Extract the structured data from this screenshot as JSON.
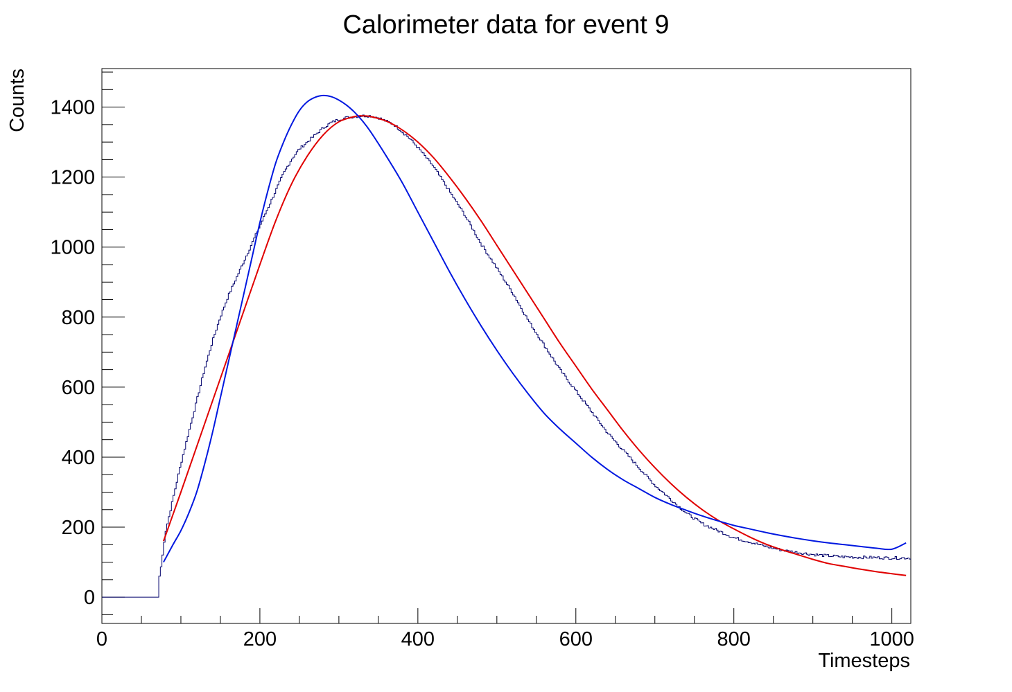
{
  "chart_data": {
    "type": "line",
    "title": "Calorimeter data for event 9",
    "xlabel": "Timesteps",
    "ylabel": "Counts",
    "xlim": [
      0,
      1024
    ],
    "ylim": [
      -75,
      1510
    ],
    "grid": false,
    "x_ticks": [
      0,
      200,
      400,
      600,
      800,
      1000
    ],
    "y_ticks": [
      0,
      200,
      400,
      600,
      800,
      1000,
      1200,
      1400
    ],
    "colors": {
      "data": "#00006b",
      "fit_red": "#e00000",
      "fit_blue": "#0018e0"
    },
    "series": [
      {
        "key": "data",
        "style": "step",
        "color": "#00006b",
        "x": [
          0,
          40,
          72,
          73,
          76,
          80,
          90,
          100,
          110,
          120,
          130,
          140,
          150,
          160,
          170,
          180,
          190,
          200,
          210,
          220,
          230,
          240,
          250,
          260,
          270,
          280,
          290,
          300,
          310,
          320,
          330,
          340,
          350,
          360,
          370,
          380,
          390,
          400,
          420,
          440,
          460,
          480,
          500,
          520,
          540,
          560,
          580,
          600,
          620,
          640,
          660,
          680,
          700,
          720,
          740,
          760,
          780,
          800,
          820,
          840,
          860,
          880,
          900,
          920,
          940,
          960,
          980,
          1000,
          1024
        ],
        "values": [
          0,
          0,
          0,
          60,
          100,
          180,
          280,
          380,
          470,
          560,
          650,
          730,
          800,
          860,
          910,
          960,
          1010,
          1060,
          1110,
          1160,
          1210,
          1250,
          1280,
          1300,
          1320,
          1340,
          1355,
          1365,
          1370,
          1373,
          1375,
          1375,
          1370,
          1360,
          1350,
          1330,
          1310,
          1285,
          1230,
          1160,
          1090,
          1010,
          940,
          870,
          790,
          720,
          650,
          590,
          530,
          470,
          420,
          370,
          320,
          280,
          240,
          210,
          190,
          170,
          158,
          145,
          135,
          128,
          122,
          118,
          115,
          114,
          113,
          112,
          112
        ]
      },
      {
        "key": "fit_red",
        "style": "smooth",
        "color": "#e00000",
        "x": [
          78,
          100,
          120,
          140,
          160,
          180,
          200,
          220,
          240,
          260,
          280,
          300,
          320,
          330,
          340,
          360,
          380,
          400,
          420,
          440,
          460,
          480,
          500,
          520,
          540,
          560,
          580,
          600,
          620,
          640,
          660,
          680,
          700,
          720,
          740,
          760,
          780,
          800,
          820,
          840,
          860,
          880,
          900,
          920,
          940,
          960,
          980,
          1000,
          1018
        ],
        "values": [
          160,
          300,
          430,
          560,
          690,
          820,
          950,
          1075,
          1180,
          1260,
          1320,
          1358,
          1373,
          1375,
          1373,
          1360,
          1335,
          1300,
          1255,
          1200,
          1140,
          1075,
          1005,
          935,
          865,
          795,
          725,
          660,
          595,
          535,
          475,
          420,
          370,
          325,
          285,
          250,
          220,
          195,
          172,
          152,
          136,
          122,
          108,
          96,
          88,
          80,
          73,
          67,
          62
        ]
      },
      {
        "key": "fit_blue",
        "style": "smooth",
        "color": "#0018e0",
        "x": [
          78,
          90,
          100,
          110,
          120,
          130,
          140,
          150,
          160,
          170,
          180,
          190,
          200,
          210,
          220,
          230,
          240,
          250,
          260,
          270,
          280,
          290,
          300,
          310,
          320,
          330,
          340,
          360,
          380,
          400,
          420,
          440,
          460,
          480,
          500,
          520,
          540,
          560,
          580,
          600,
          620,
          640,
          660,
          680,
          700,
          720,
          740,
          760,
          780,
          800,
          820,
          840,
          860,
          880,
          900,
          920,
          940,
          960,
          980,
          1000,
          1018
        ],
        "values": [
          100,
          150,
          190,
          240,
          300,
          380,
          470,
          570,
          670,
          770,
          870,
          970,
          1070,
          1160,
          1240,
          1300,
          1350,
          1390,
          1415,
          1428,
          1433,
          1430,
          1420,
          1405,
          1385,
          1360,
          1330,
          1260,
          1185,
          1100,
          1015,
          930,
          850,
          775,
          705,
          640,
          580,
          525,
          480,
          440,
          400,
          365,
          335,
          310,
          285,
          265,
          248,
          232,
          218,
          205,
          195,
          185,
          176,
          168,
          161,
          155,
          150,
          145,
          140,
          137,
          155
        ]
      }
    ]
  }
}
